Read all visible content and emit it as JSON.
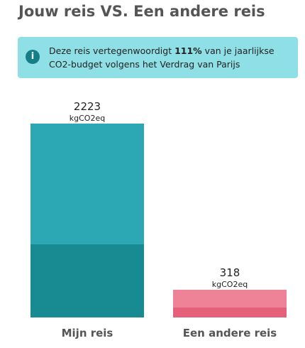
{
  "title": "Jouw reis VS. Een andere reis",
  "info": {
    "text_before": "Deze reis vertegenwoordigt ",
    "highlight": "111%",
    "text_after": " van je jaarlijkse",
    "text_line2": "CO2-budget volgens het Verdrag van Parijs"
  },
  "chart_data": {
    "type": "bar",
    "categories": [
      "Mijn reis",
      "Een andere reis"
    ],
    "totals": [
      2223,
      318
    ],
    "unit": "kgCO2eq",
    "series": [
      {
        "colors": [
          "#178a92",
          "#e5607a"
        ],
        "values": [
          839,
          114
        ]
      },
      {
        "colors": [
          "#2ba8b4",
          "#ee8296"
        ],
        "values": [
          1384,
          204
        ]
      }
    ]
  }
}
